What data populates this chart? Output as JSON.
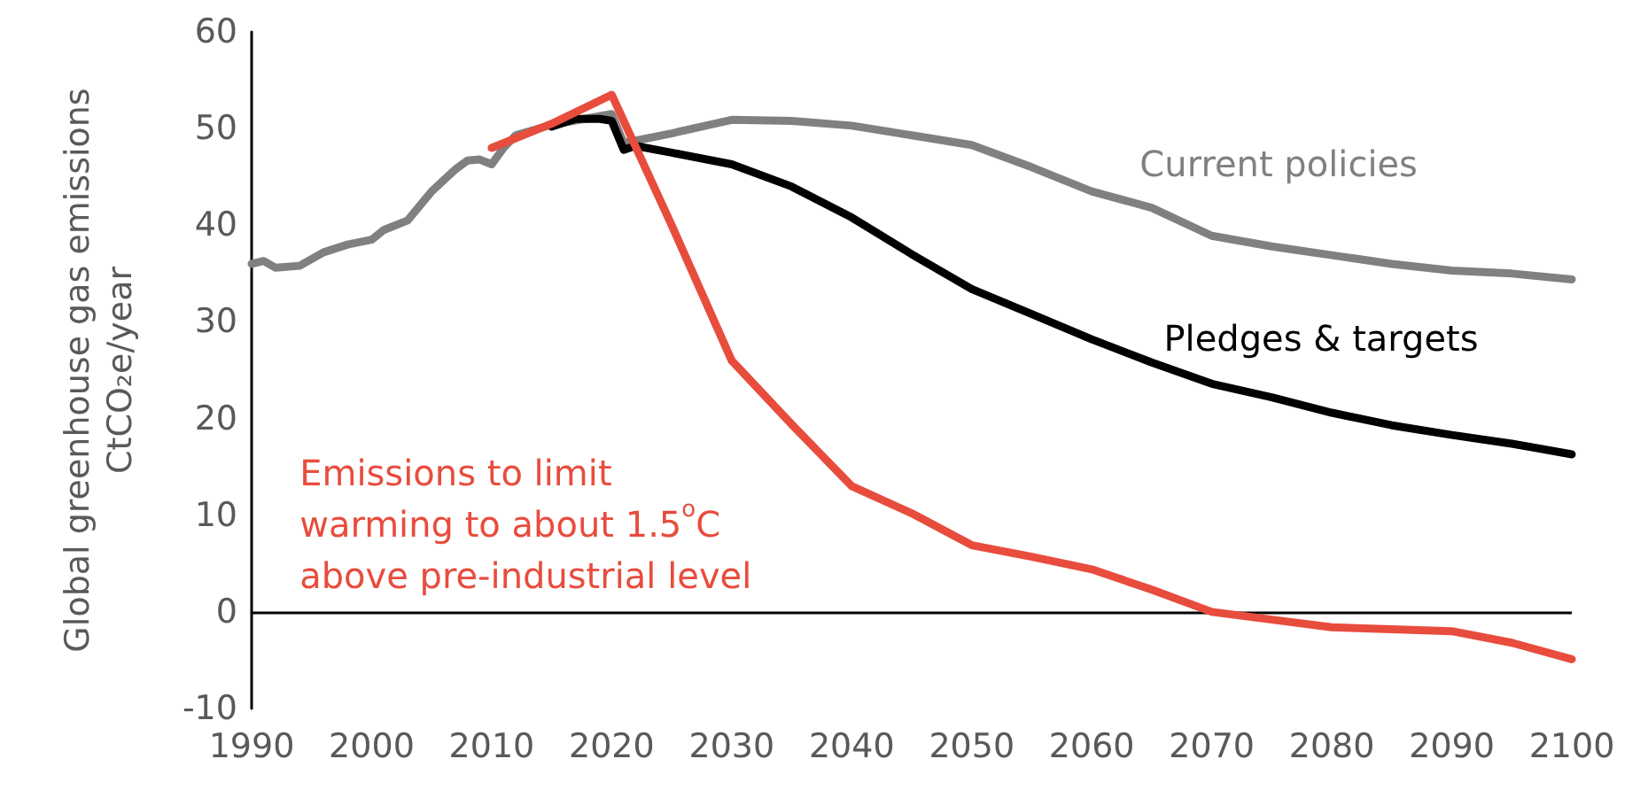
{
  "chart_data": {
    "type": "line",
    "ylabel": "Global greenhouse gas emissions CtCO₂e/year",
    "xlim": [
      1990,
      2100
    ],
    "xticks": [
      1990,
      2000,
      2010,
      2020,
      2030,
      2040,
      2050,
      2060,
      2070,
      2080,
      2090,
      2100
    ],
    "ylim": [
      -10,
      60
    ],
    "yticks": [
      -10,
      0,
      10,
      20,
      30,
      40,
      50,
      60
    ],
    "grid": false,
    "legend": false,
    "marker": "none",
    "line_style": "solid",
    "ref_lines": [
      {
        "axis": "y",
        "value": 0,
        "color": "#000000"
      }
    ],
    "series": [
      {
        "name": "Current policies",
        "color": "#808080",
        "x": [
          1990,
          1991,
          1992,
          1994,
          1996,
          1998,
          2000,
          2001,
          2003,
          2005,
          2007,
          2008,
          2009,
          2010,
          2011,
          2012,
          2015,
          2020,
          2021,
          2025,
          2030,
          2035,
          2040,
          2045,
          2050,
          2055,
          2060,
          2065,
          2070,
          2075,
          2080,
          2085,
          2090,
          2095,
          2100
        ],
        "values": [
          36,
          36.3,
          35.6,
          35.8,
          37.2,
          38,
          38.5,
          39.5,
          40.5,
          43.5,
          45.8,
          46.7,
          46.8,
          46.3,
          48,
          49.3,
          50.4,
          51.5,
          48.5,
          49.5,
          50.9,
          50.8,
          50.3,
          49.3,
          48.3,
          46,
          43.5,
          41.8,
          38.9,
          37.8,
          36.9,
          36,
          35.3,
          35,
          34.4
        ]
      },
      {
        "name": "Pledges & targets",
        "color": "#000000",
        "x": [
          2015,
          2017,
          2019,
          2020,
          2021,
          2022,
          2025,
          2030,
          2035,
          2040,
          2045,
          2050,
          2055,
          2060,
          2065,
          2070,
          2075,
          2080,
          2085,
          2090,
          2095,
          2100
        ],
        "values": [
          50.2,
          51,
          51,
          50.8,
          47.8,
          48.2,
          47.5,
          46.3,
          44,
          40.8,
          37,
          33.4,
          30.8,
          28.2,
          25.8,
          23.6,
          22.2,
          20.6,
          19.3,
          18.3,
          17.4,
          16.3
        ]
      },
      {
        "name": "Emissions to limit warming to about 1.5$^{o}$C above pre-industrial level",
        "color": "#e84c3d",
        "x": [
          2010,
          2015,
          2020,
          2025,
          2030,
          2035,
          2040,
          2045,
          2050,
          2055,
          2060,
          2065,
          2070,
          2075,
          2080,
          2085,
          2090,
          2095,
          2100
        ],
        "values": [
          48,
          50.5,
          53.5,
          40,
          26,
          19.4,
          13,
          10.2,
          6.9,
          5.7,
          4.4,
          2.3,
          0,
          -0.8,
          -1.6,
          -1.8,
          -2,
          -3.2,
          -4.9
        ]
      }
    ]
  }
}
